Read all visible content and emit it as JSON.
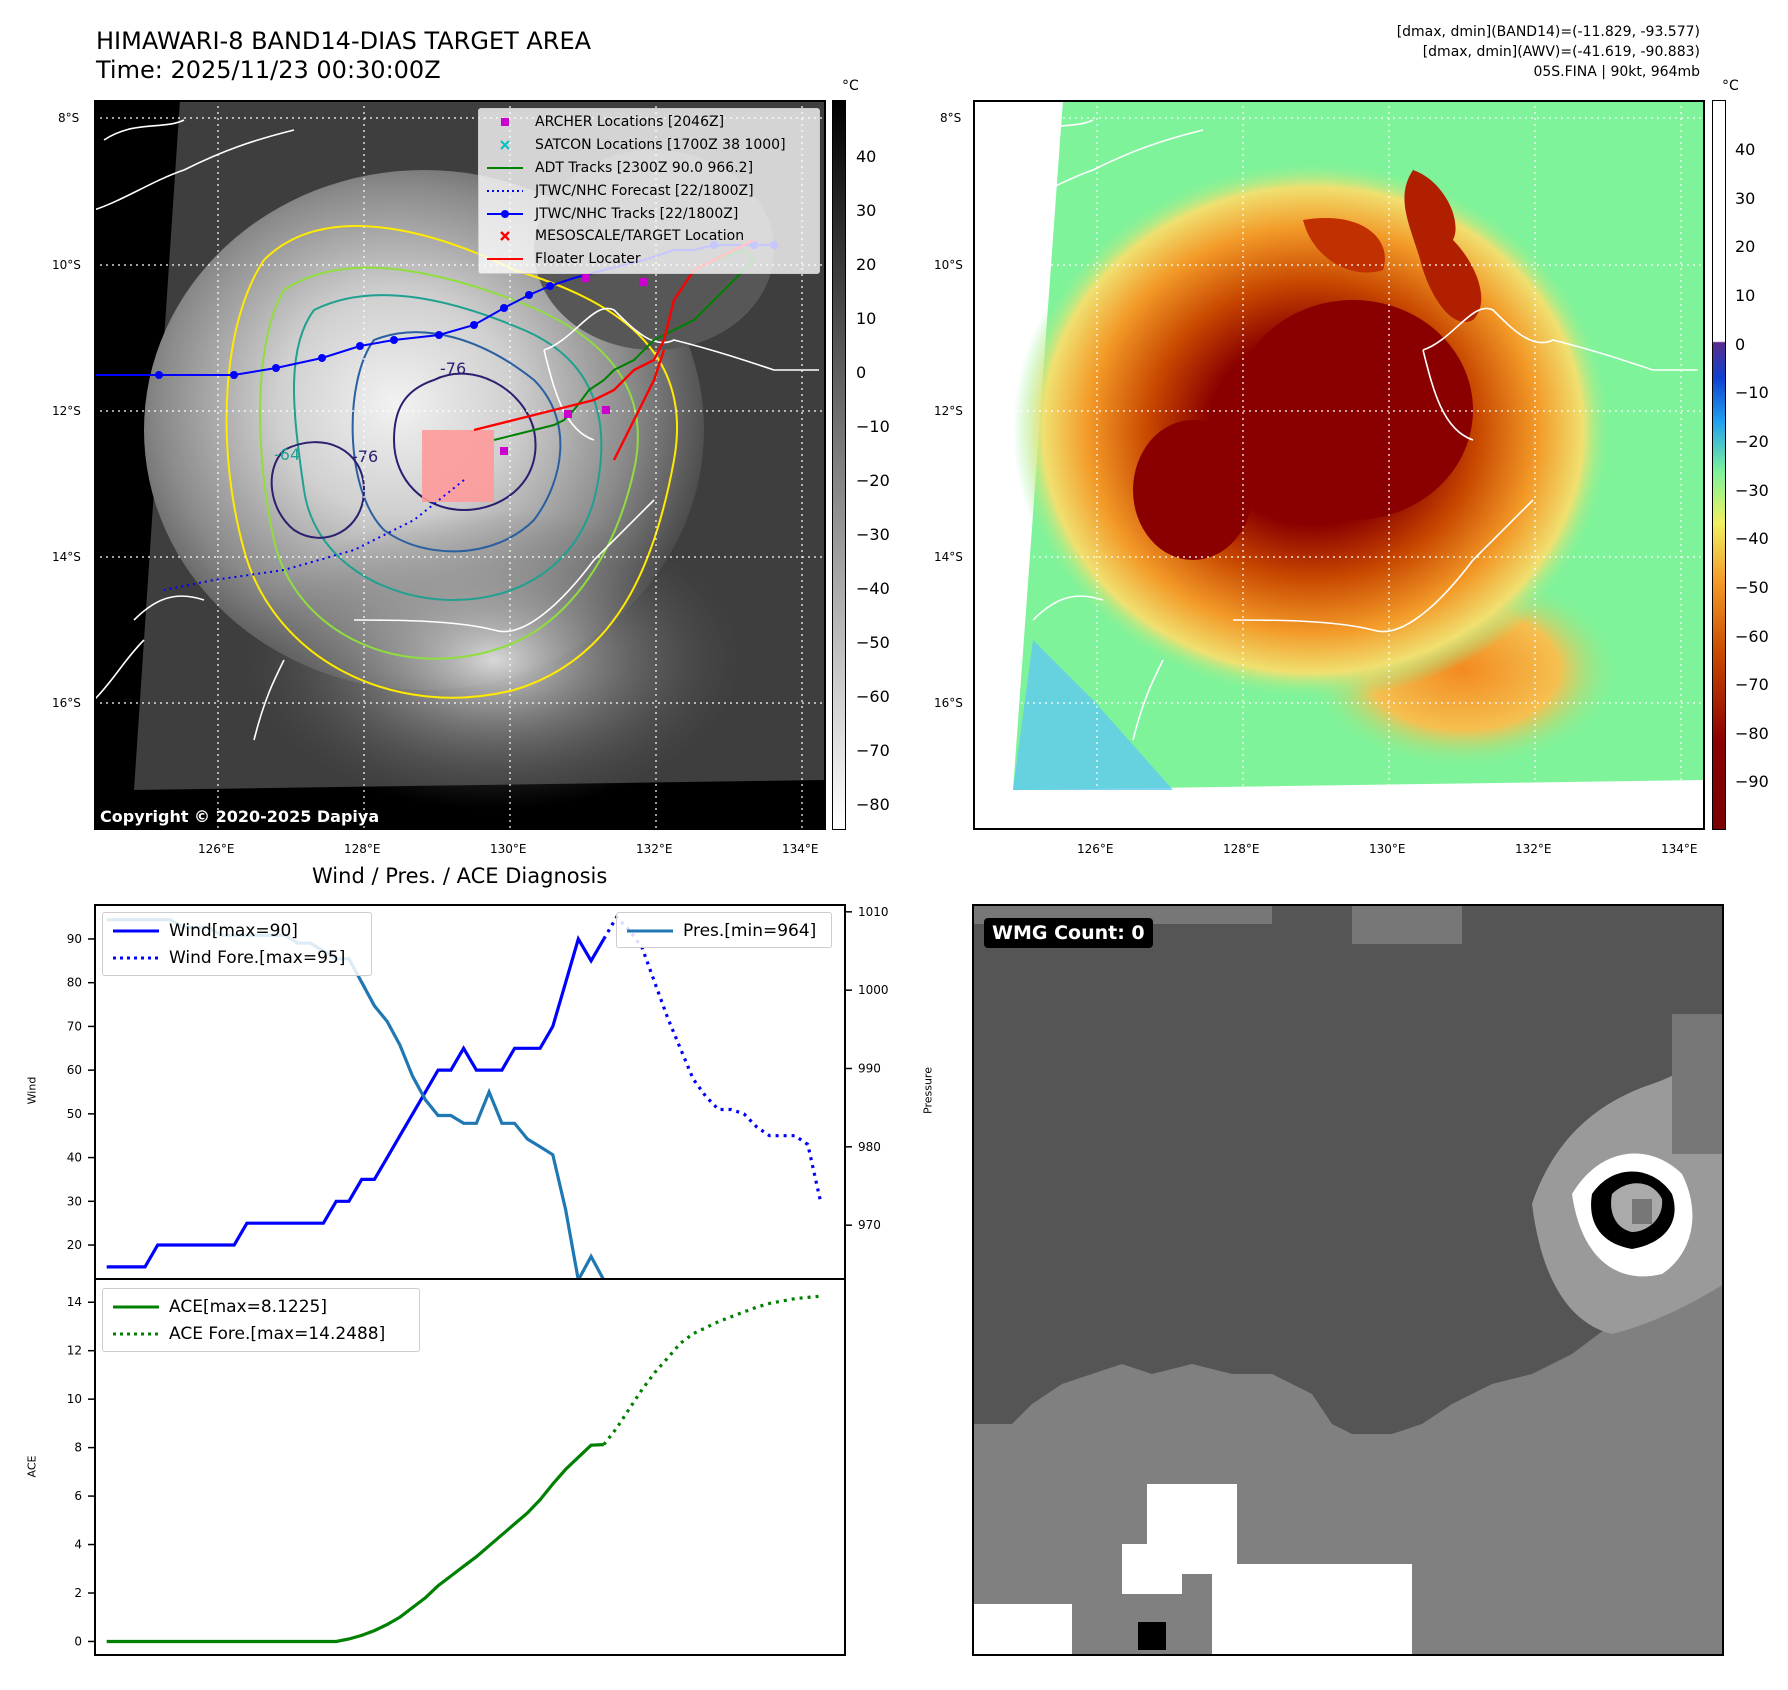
{
  "header": {
    "title_line1": "HIMAWARI-8 BAND14-DIAS TARGET AREA",
    "title_line2": "Time: 2025/11/23 00:30:00Z",
    "info_line1": "[dmax, dmin](BAND14)=(-11.829, -93.577)",
    "info_line2": "[dmax, dmin](AWV)=(-41.619, -90.883)",
    "info_line3": "05S.FINA | 90kt, 964mb"
  },
  "map_left": {
    "lat_labels": [
      "8°S",
      "10°S",
      "12°S",
      "14°S",
      "16°S"
    ],
    "lon_labels": [
      "126°E",
      "128°E",
      "130°E",
      "132°E",
      "134°E"
    ],
    "copyright": "Copyright © 2020-2025 Dapiya",
    "colorbar_unit": "°C",
    "colorbar_ticks": [
      "40",
      "30",
      "20",
      "10",
      "0",
      "−10",
      "−20",
      "−30",
      "−40",
      "−50",
      "−60",
      "−70",
      "−80"
    ],
    "contour_labels": [
      "-76",
      "-64",
      "-76"
    ],
    "legend": [
      {
        "label": "ARCHER Locations [2046Z]",
        "marker": "square",
        "color": "#cc00cc"
      },
      {
        "label": "SATCON Locations [1700Z 38 1000]",
        "marker": "x",
        "color": "#00c0c0"
      },
      {
        "label": "ADT Tracks [2300Z 90.0 966.2]",
        "marker": "line",
        "color": "#008000"
      },
      {
        "label": "JTWC/NHC Forecast [22/1800Z]",
        "marker": "dotted",
        "color": "#0000ff"
      },
      {
        "label": "JTWC/NHC Tracks [22/1800Z]",
        "marker": "dotline",
        "color": "#0000ff"
      },
      {
        "label": "MESOSCALE/TARGET Location",
        "marker": "x",
        "color": "#ff0000"
      },
      {
        "label": "Floater Locater",
        "marker": "line",
        "color": "#ff0000"
      }
    ]
  },
  "map_right": {
    "lat_labels": [
      "8°S",
      "10°S",
      "12°S",
      "14°S",
      "16°S"
    ],
    "lon_labels": [
      "126°E",
      "128°E",
      "130°E",
      "132°E",
      "134°E"
    ],
    "colorbar_unit": "°C",
    "colorbar_ticks": [
      "40",
      "30",
      "20",
      "10",
      "0",
      "−10",
      "−20",
      "−30",
      "−40",
      "−50",
      "−60",
      "−70",
      "−80",
      "−90"
    ]
  },
  "wmg": {
    "label": "WMG Count: 0"
  },
  "chart_data": [
    {
      "type": "line",
      "title": "Wind / Pres. / ACE Diagnosis",
      "ylabel": "Wind",
      "y2label": "Pressure",
      "ylim": [
        12,
        98
      ],
      "y2lim": [
        963,
        1011
      ],
      "yticks": [
        20,
        30,
        40,
        50,
        60,
        70,
        80,
        90
      ],
      "y2ticks": [
        970,
        980,
        990,
        1000,
        1010
      ],
      "x": [
        0,
        1,
        2,
        3,
        4,
        5,
        6,
        7,
        8,
        9,
        10,
        11,
        12,
        13,
        14,
        15,
        16,
        17,
        18,
        19,
        20,
        21,
        22,
        23,
        24,
        25,
        26,
        27,
        28,
        29,
        30,
        31,
        32,
        33,
        34,
        35,
        36,
        37,
        38,
        39,
        40,
        41,
        42,
        43,
        44,
        45,
        46,
        47,
        48,
        49,
        50,
        51,
        52,
        53,
        54,
        55,
        56
      ],
      "series": [
        {
          "name": "Wind[max=90]",
          "axis": "left",
          "style": "solid",
          "color": "#0000ff",
          "x": [
            0,
            1,
            2,
            3,
            4,
            5,
            6,
            7,
            8,
            9,
            10,
            11,
            12,
            13,
            14,
            15,
            16,
            17,
            18,
            19,
            20,
            21,
            22,
            23,
            24,
            25,
            26,
            27,
            28,
            29,
            30,
            31,
            32,
            33,
            34,
            35,
            36,
            37,
            38,
            39
          ],
          "values": [
            15,
            15,
            15,
            15,
            20,
            20,
            20,
            20,
            20,
            20,
            20,
            25,
            25,
            25,
            25,
            25,
            25,
            25,
            30,
            30,
            35,
            35,
            40,
            45,
            50,
            55,
            60,
            60,
            65,
            60,
            60,
            60,
            65,
            65,
            65,
            70,
            80,
            90,
            85,
            90
          ]
        },
        {
          "name": "Wind Fore.[max=95]",
          "axis": "left",
          "style": "dotted",
          "color": "#0000ff",
          "x": [
            39,
            40,
            41,
            42,
            43,
            44,
            45,
            46,
            47,
            48,
            49,
            50,
            51,
            52,
            53,
            54,
            55,
            56
          ],
          "values": [
            90,
            95,
            92,
            88,
            80,
            72,
            65,
            58,
            54,
            51,
            51,
            50,
            47,
            45,
            45,
            45,
            43,
            30
          ]
        },
        {
          "name": "Pres.[min=964]",
          "axis": "right",
          "style": "solid",
          "color": "#1f77b4",
          "x": [
            0,
            1,
            2,
            3,
            4,
            5,
            6,
            7,
            8,
            9,
            10,
            11,
            12,
            13,
            14,
            15,
            16,
            17,
            18,
            19,
            20,
            21,
            22,
            23,
            24,
            25,
            26,
            27,
            28,
            29,
            30,
            31,
            32,
            33,
            34,
            35,
            36,
            37,
            38,
            39
          ],
          "values": [
            1009,
            1009,
            1009,
            1009,
            1009,
            1009,
            1008,
            1008,
            1008,
            1007,
            1007,
            1007,
            1007,
            1007,
            1007,
            1006,
            1006,
            1005,
            1004,
            1004,
            1001,
            998,
            996,
            993,
            989,
            986,
            984,
            984,
            983,
            983,
            987,
            983,
            983,
            981,
            980,
            979,
            972,
            963,
            966,
            963
          ]
        }
      ]
    },
    {
      "type": "line",
      "ylabel": "ACE",
      "ylim": [
        -0.6,
        15
      ],
      "yticks": [
        0,
        2,
        4,
        6,
        8,
        10,
        12,
        14
      ],
      "series": [
        {
          "name": "ACE[max=8.1225]",
          "style": "solid",
          "color": "#008000",
          "x": [
            0,
            1,
            2,
            3,
            4,
            5,
            6,
            7,
            8,
            9,
            10,
            11,
            12,
            13,
            14,
            15,
            16,
            17,
            18,
            19,
            20,
            21,
            22,
            23,
            24,
            25,
            26,
            27,
            28,
            29,
            30,
            31,
            32,
            33,
            34,
            35,
            36,
            37,
            38,
            39
          ],
          "values": [
            0,
            0,
            0,
            0,
            0,
            0,
            0,
            0,
            0,
            0,
            0,
            0,
            0,
            0,
            0,
            0,
            0,
            0,
            0,
            0.1,
            0.25,
            0.45,
            0.7,
            1.0,
            1.4,
            1.8,
            2.3,
            2.7,
            3.1,
            3.5,
            3.95,
            4.4,
            4.85,
            5.3,
            5.85,
            6.5,
            7.1,
            7.6,
            8.1,
            8.1225
          ]
        },
        {
          "name": "ACE Fore.[max=14.2488]",
          "style": "dotted",
          "color": "#008000",
          "x": [
            39,
            40,
            41,
            42,
            43,
            44,
            45,
            46,
            47,
            48,
            49,
            50,
            51,
            52,
            53,
            54,
            55,
            56
          ],
          "values": [
            8.1225,
            8.8,
            9.6,
            10.4,
            11.1,
            11.7,
            12.3,
            12.7,
            12.95,
            13.2,
            13.4,
            13.6,
            13.8,
            13.95,
            14.05,
            14.15,
            14.2,
            14.2488
          ]
        }
      ]
    }
  ]
}
